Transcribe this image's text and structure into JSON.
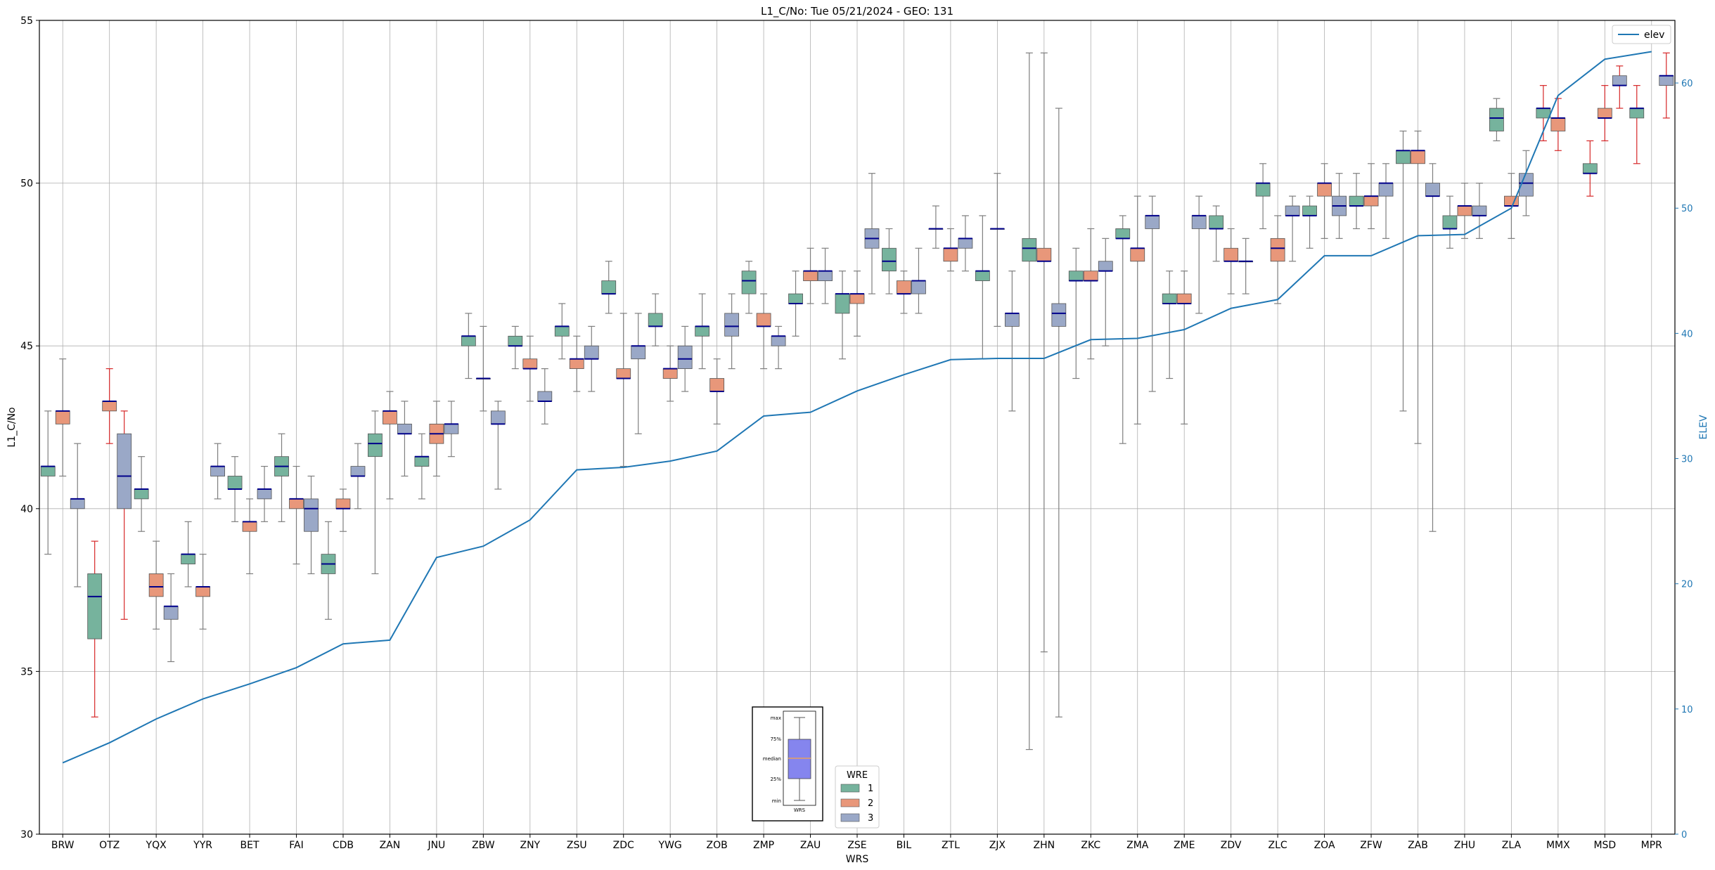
{
  "chart_data": {
    "type": "box",
    "title": "L1_C/No: Tue 05/21/2024 - GEO: 131",
    "xlabel": "WRS",
    "ylabel": "L1_C/No",
    "ylabel_right": "ELEV",
    "ylim": [
      30,
      55
    ],
    "ylim_right": [
      0,
      65
    ],
    "yticks": [
      30,
      35,
      40,
      45,
      50,
      55
    ],
    "yticks_right": [
      0,
      10,
      20,
      30,
      40,
      50,
      60
    ],
    "grid": true,
    "legend_line": {
      "label": "elev",
      "position": "top-right"
    },
    "legend_groups": {
      "title": "WRE",
      "position": "bottom-center",
      "items": [
        "1",
        "2",
        "3"
      ]
    },
    "inset_labels": [
      "max",
      "75%",
      "median",
      "25%",
      "min",
      "WRS"
    ],
    "colors": {
      "wre1": "#76b39d",
      "wre2": "#e8977a",
      "wre3": "#9aa8c7",
      "median": "#00008b",
      "elev": "#1f77b4",
      "whisker": "#7f7f7f",
      "whisker_alt": "#d62728",
      "inset_box": "#8585ee",
      "inset_median": "#e8a060"
    },
    "categories": [
      "BRW",
      "OTZ",
      "YQX",
      "YYR",
      "BET",
      "FAI",
      "CDB",
      "ZAN",
      "JNU",
      "ZBW",
      "ZNY",
      "ZSU",
      "ZDC",
      "YWG",
      "ZOB",
      "ZMP",
      "ZAU",
      "ZSE",
      "BIL",
      "ZTL",
      "ZJX",
      "ZHN",
      "ZKC",
      "ZMA",
      "ZME",
      "ZDV",
      "ZLC",
      "ZOA",
      "ZFW",
      "ZAB",
      "ZHU",
      "ZLA",
      "MMX",
      "MSD",
      "MPR"
    ],
    "elev": [
      5.7,
      7.3,
      9.2,
      10.8,
      12.0,
      13.3,
      15.2,
      15.5,
      22.1,
      23.0,
      25.1,
      29.1,
      29.3,
      29.8,
      30.6,
      33.4,
      33.7,
      35.4,
      36.7,
      37.9,
      38.0,
      38.0,
      39.5,
      39.6,
      40.3,
      42.0,
      42.7,
      46.2,
      46.2,
      47.8,
      47.9,
      50.0,
      59.0,
      61.9,
      62.5
    ],
    "boxes": [
      {
        "wrs": "BRW",
        "wre": 1,
        "min": 38.6,
        "q1": 41.0,
        "median": 41.3,
        "q3": 41.3,
        "max": 43.0
      },
      {
        "wrs": "BRW",
        "wre": 2,
        "min": 41.0,
        "q1": 42.6,
        "median": 43.0,
        "q3": 43.0,
        "max": 44.6
      },
      {
        "wrs": "BRW",
        "wre": 3,
        "min": 37.6,
        "q1": 40.0,
        "median": 40.3,
        "q3": 40.3,
        "max": 42.0
      },
      {
        "wrs": "OTZ",
        "wre": 1,
        "min": 33.6,
        "q1": 36.0,
        "median": 37.3,
        "q3": 38.0,
        "max": 39.0
      },
      {
        "wrs": "OTZ",
        "wre": 2,
        "min": 42.0,
        "q1": 43.0,
        "median": 43.3,
        "q3": 43.3,
        "max": 44.3
      },
      {
        "wrs": "OTZ",
        "wre": 3,
        "min": 36.6,
        "q1": 40.0,
        "median": 41.0,
        "q3": 42.3,
        "max": 43.0
      },
      {
        "wrs": "YQX",
        "wre": 1,
        "min": 39.3,
        "q1": 40.3,
        "median": 40.6,
        "q3": 40.6,
        "max": 41.6
      },
      {
        "wrs": "YQX",
        "wre": 2,
        "min": 36.3,
        "q1": 37.3,
        "median": 37.6,
        "q3": 38.0,
        "max": 39.0
      },
      {
        "wrs": "YQX",
        "wre": 3,
        "min": 35.3,
        "q1": 36.6,
        "median": 37.0,
        "q3": 37.0,
        "max": 38.0
      },
      {
        "wrs": "YYR",
        "wre": 1,
        "min": 37.6,
        "q1": 38.3,
        "median": 38.6,
        "q3": 38.6,
        "max": 39.6
      },
      {
        "wrs": "YYR",
        "wre": 2,
        "min": 36.3,
        "q1": 37.3,
        "median": 37.6,
        "q3": 37.6,
        "max": 38.6
      },
      {
        "wrs": "YYR",
        "wre": 3,
        "min": 40.3,
        "q1": 41.0,
        "median": 41.3,
        "q3": 41.3,
        "max": 42.0
      },
      {
        "wrs": "BET",
        "wre": 1,
        "min": 39.6,
        "q1": 40.6,
        "median": 40.6,
        "q3": 41.0,
        "max": 41.6
      },
      {
        "wrs": "BET",
        "wre": 2,
        "min": 38.0,
        "q1": 39.3,
        "median": 39.6,
        "q3": 39.6,
        "max": 40.3
      },
      {
        "wrs": "BET",
        "wre": 3,
        "min": 39.6,
        "q1": 40.3,
        "median": 40.6,
        "q3": 40.6,
        "max": 41.3
      },
      {
        "wrs": "FAI",
        "wre": 1,
        "min": 39.6,
        "q1": 41.0,
        "median": 41.3,
        "q3": 41.6,
        "max": 42.3
      },
      {
        "wrs": "FAI",
        "wre": 2,
        "min": 38.3,
        "q1": 40.0,
        "median": 40.3,
        "q3": 40.3,
        "max": 41.3
      },
      {
        "wrs": "FAI",
        "wre": 3,
        "min": 38.0,
        "q1": 39.3,
        "median": 40.0,
        "q3": 40.3,
        "max": 41.0
      },
      {
        "wrs": "CDB",
        "wre": 1,
        "min": 36.6,
        "q1": 38.0,
        "median": 38.3,
        "q3": 38.6,
        "max": 39.6
      },
      {
        "wrs": "CDB",
        "wre": 2,
        "min": 39.3,
        "q1": 40.0,
        "median": 40.0,
        "q3": 40.3,
        "max": 40.6
      },
      {
        "wrs": "CDB",
        "wre": 3,
        "min": 40.0,
        "q1": 41.0,
        "median": 41.0,
        "q3": 41.3,
        "max": 42.0
      },
      {
        "wrs": "ZAN",
        "wre": 1,
        "min": 38.0,
        "q1": 41.6,
        "median": 42.0,
        "q3": 42.3,
        "max": 43.0
      },
      {
        "wrs": "ZAN",
        "wre": 2,
        "min": 40.3,
        "q1": 42.6,
        "median": 43.0,
        "q3": 43.0,
        "max": 43.6
      },
      {
        "wrs": "ZAN",
        "wre": 3,
        "min": 41.0,
        "q1": 42.3,
        "median": 42.3,
        "q3": 42.6,
        "max": 43.3
      },
      {
        "wrs": "JNU",
        "wre": 1,
        "min": 40.3,
        "q1": 41.3,
        "median": 41.6,
        "q3": 41.6,
        "max": 42.3
      },
      {
        "wrs": "JNU",
        "wre": 2,
        "min": 41.0,
        "q1": 42.0,
        "median": 42.3,
        "q3": 42.6,
        "max": 43.3
      },
      {
        "wrs": "JNU",
        "wre": 3,
        "min": 41.6,
        "q1": 42.3,
        "median": 42.6,
        "q3": 42.6,
        "max": 43.3
      },
      {
        "wrs": "ZBW",
        "wre": 1,
        "min": 44.0,
        "q1": 45.0,
        "median": 45.3,
        "q3": 45.3,
        "max": 46.0
      },
      {
        "wrs": "ZBW",
        "wre": 2,
        "min": 43.0,
        "q1": 44.0,
        "median": 44.0,
        "q3": 44.0,
        "max": 45.6
      },
      {
        "wrs": "ZBW",
        "wre": 3,
        "min": 40.6,
        "q1": 42.6,
        "median": 42.6,
        "q3": 43.0,
        "max": 43.3
      },
      {
        "wrs": "ZNY",
        "wre": 1,
        "min": 44.3,
        "q1": 45.0,
        "median": 45.0,
        "q3": 45.3,
        "max": 45.6
      },
      {
        "wrs": "ZNY",
        "wre": 2,
        "min": 43.3,
        "q1": 44.3,
        "median": 44.3,
        "q3": 44.6,
        "max": 45.3
      },
      {
        "wrs": "ZNY",
        "wre": 3,
        "min": 42.6,
        "q1": 43.3,
        "median": 43.3,
        "q3": 43.6,
        "max": 44.3
      },
      {
        "wrs": "ZSU",
        "wre": 1,
        "min": 44.6,
        "q1": 45.3,
        "median": 45.6,
        "q3": 45.6,
        "max": 46.3
      },
      {
        "wrs": "ZSU",
        "wre": 2,
        "min": 43.6,
        "q1": 44.3,
        "median": 44.6,
        "q3": 44.6,
        "max": 45.3
      },
      {
        "wrs": "ZSU",
        "wre": 3,
        "min": 43.6,
        "q1": 44.6,
        "median": 44.6,
        "q3": 45.0,
        "max": 45.6
      },
      {
        "wrs": "ZDC",
        "wre": 1,
        "min": 46.0,
        "q1": 46.6,
        "median": 46.6,
        "q3": 47.0,
        "max": 47.6
      },
      {
        "wrs": "ZDC",
        "wre": 2,
        "min": 41.3,
        "q1": 44.0,
        "median": 44.0,
        "q3": 44.3,
        "max": 46.0
      },
      {
        "wrs": "ZDC",
        "wre": 3,
        "min": 42.3,
        "q1": 44.6,
        "median": 45.0,
        "q3": 45.0,
        "max": 46.0
      },
      {
        "wrs": "YWG",
        "wre": 1,
        "min": 45.0,
        "q1": 45.6,
        "median": 45.6,
        "q3": 46.0,
        "max": 46.6
      },
      {
        "wrs": "YWG",
        "wre": 2,
        "min": 43.3,
        "q1": 44.0,
        "median": 44.3,
        "q3": 44.3,
        "max": 45.0
      },
      {
        "wrs": "YWG",
        "wre": 3,
        "min": 43.6,
        "q1": 44.3,
        "median": 44.6,
        "q3": 45.0,
        "max": 45.6
      },
      {
        "wrs": "ZOB",
        "wre": 1,
        "min": 44.3,
        "q1": 45.3,
        "median": 45.6,
        "q3": 45.6,
        "max": 46.6
      },
      {
        "wrs": "ZOB",
        "wre": 2,
        "min": 42.6,
        "q1": 43.6,
        "median": 43.6,
        "q3": 44.0,
        "max": 44.6
      },
      {
        "wrs": "ZOB",
        "wre": 3,
        "min": 44.3,
        "q1": 45.3,
        "median": 45.6,
        "q3": 46.0,
        "max": 46.6
      },
      {
        "wrs": "ZMP",
        "wre": 1,
        "min": 46.0,
        "q1": 46.6,
        "median": 47.0,
        "q3": 47.3,
        "max": 47.6
      },
      {
        "wrs": "ZMP",
        "wre": 2,
        "min": 44.3,
        "q1": 45.6,
        "median": 45.6,
        "q3": 46.0,
        "max": 46.6
      },
      {
        "wrs": "ZMP",
        "wre": 3,
        "min": 44.3,
        "q1": 45.0,
        "median": 45.3,
        "q3": 45.3,
        "max": 45.6
      },
      {
        "wrs": "ZAU",
        "wre": 1,
        "min": 45.3,
        "q1": 46.3,
        "median": 46.3,
        "q3": 46.6,
        "max": 47.3
      },
      {
        "wrs": "ZAU",
        "wre": 2,
        "min": 46.3,
        "q1": 47.0,
        "median": 47.3,
        "q3": 47.3,
        "max": 48.0
      },
      {
        "wrs": "ZAU",
        "wre": 3,
        "min": 46.3,
        "q1": 47.0,
        "median": 47.3,
        "q3": 47.3,
        "max": 48.0
      },
      {
        "wrs": "ZSE",
        "wre": 1,
        "min": 44.6,
        "q1": 46.0,
        "median": 46.6,
        "q3": 46.6,
        "max": 47.3
      },
      {
        "wrs": "ZSE",
        "wre": 2,
        "min": 45.3,
        "q1": 46.3,
        "median": 46.6,
        "q3": 46.6,
        "max": 47.3
      },
      {
        "wrs": "ZSE",
        "wre": 3,
        "min": 46.6,
        "q1": 48.0,
        "median": 48.3,
        "q3": 48.6,
        "max": 50.3
      },
      {
        "wrs": "BIL",
        "wre": 1,
        "min": 46.6,
        "q1": 47.3,
        "median": 47.6,
        "q3": 48.0,
        "max": 48.6
      },
      {
        "wrs": "BIL",
        "wre": 2,
        "min": 46.0,
        "q1": 46.6,
        "median": 46.6,
        "q3": 47.0,
        "max": 47.3
      },
      {
        "wrs": "BIL",
        "wre": 3,
        "min": 46.0,
        "q1": 46.6,
        "median": 47.0,
        "q3": 47.0,
        "max": 48.0
      },
      {
        "wrs": "ZTL",
        "wre": 1,
        "min": 48.0,
        "q1": 48.6,
        "median": 48.6,
        "q3": 48.6,
        "max": 49.3
      },
      {
        "wrs": "ZTL",
        "wre": 2,
        "min": 47.3,
        "q1": 47.6,
        "median": 48.0,
        "q3": 48.0,
        "max": 48.6
      },
      {
        "wrs": "ZTL",
        "wre": 3,
        "min": 47.3,
        "q1": 48.0,
        "median": 48.3,
        "q3": 48.3,
        "max": 49.0
      },
      {
        "wrs": "ZJX",
        "wre": 1,
        "min": 44.6,
        "q1": 47.0,
        "median": 47.3,
        "q3": 47.3,
        "max": 49.0
      },
      {
        "wrs": "ZJX",
        "wre": 2,
        "min": 45.6,
        "q1": 48.6,
        "median": 48.6,
        "q3": 48.6,
        "max": 50.3
      },
      {
        "wrs": "ZJX",
        "wre": 3,
        "min": 43.0,
        "q1": 45.6,
        "median": 46.0,
        "q3": 46.0,
        "max": 47.3
      },
      {
        "wrs": "ZHN",
        "wre": 1,
        "min": 32.6,
        "q1": 47.6,
        "median": 48.0,
        "q3": 48.3,
        "max": 54.0
      },
      {
        "wrs": "ZHN",
        "wre": 2,
        "min": 35.6,
        "q1": 47.6,
        "median": 47.6,
        "q3": 48.0,
        "max": 54.0
      },
      {
        "wrs": "ZHN",
        "wre": 3,
        "min": 33.6,
        "q1": 45.6,
        "median": 46.0,
        "q3": 46.3,
        "max": 52.3
      },
      {
        "wrs": "ZKC",
        "wre": 1,
        "min": 44.0,
        "q1": 47.0,
        "median": 47.0,
        "q3": 47.3,
        "max": 48.0
      },
      {
        "wrs": "ZKC",
        "wre": 2,
        "min": 44.6,
        "q1": 47.0,
        "median": 47.0,
        "q3": 47.3,
        "max": 48.6
      },
      {
        "wrs": "ZKC",
        "wre": 3,
        "min": 45.0,
        "q1": 47.3,
        "median": 47.3,
        "q3": 47.6,
        "max": 48.3
      },
      {
        "wrs": "ZMA",
        "wre": 1,
        "min": 42.0,
        "q1": 48.3,
        "median": 48.3,
        "q3": 48.6,
        "max": 49.0
      },
      {
        "wrs": "ZMA",
        "wre": 2,
        "min": 42.6,
        "q1": 47.6,
        "median": 48.0,
        "q3": 48.0,
        "max": 49.6
      },
      {
        "wrs": "ZMA",
        "wre": 3,
        "min": 43.6,
        "q1": 48.6,
        "median": 49.0,
        "q3": 49.0,
        "max": 49.6
      },
      {
        "wrs": "ZME",
        "wre": 1,
        "min": 44.0,
        "q1": 46.3,
        "median": 46.3,
        "q3": 46.6,
        "max": 47.3
      },
      {
        "wrs": "ZME",
        "wre": 2,
        "min": 42.6,
        "q1": 46.3,
        "median": 46.3,
        "q3": 46.6,
        "max": 47.3
      },
      {
        "wrs": "ZME",
        "wre": 3,
        "min": 46.0,
        "q1": 48.6,
        "median": 49.0,
        "q3": 49.0,
        "max": 49.6
      },
      {
        "wrs": "ZDV",
        "wre": 1,
        "min": 47.6,
        "q1": 48.6,
        "median": 48.6,
        "q3": 49.0,
        "max": 49.3
      },
      {
        "wrs": "ZDV",
        "wre": 2,
        "min": 46.6,
        "q1": 47.6,
        "median": 47.6,
        "q3": 48.0,
        "max": 48.6
      },
      {
        "wrs": "ZDV",
        "wre": 3,
        "min": 46.6,
        "q1": 47.6,
        "median": 47.6,
        "q3": 47.6,
        "max": 48.3
      },
      {
        "wrs": "ZLC",
        "wre": 1,
        "min": 48.6,
        "q1": 49.6,
        "median": 50.0,
        "q3": 50.0,
        "max": 50.6
      },
      {
        "wrs": "ZLC",
        "wre": 2,
        "min": 46.3,
        "q1": 47.6,
        "median": 48.0,
        "q3": 48.3,
        "max": 49.0
      },
      {
        "wrs": "ZLC",
        "wre": 3,
        "min": 47.6,
        "q1": 49.0,
        "median": 49.0,
        "q3": 49.3,
        "max": 49.6
      },
      {
        "wrs": "ZOA",
        "wre": 1,
        "min": 48.0,
        "q1": 49.0,
        "median": 49.0,
        "q3": 49.3,
        "max": 49.6
      },
      {
        "wrs": "ZOA",
        "wre": 2,
        "min": 48.3,
        "q1": 49.6,
        "median": 50.0,
        "q3": 50.0,
        "max": 50.6
      },
      {
        "wrs": "ZOA",
        "wre": 3,
        "min": 48.3,
        "q1": 49.0,
        "median": 49.3,
        "q3": 49.6,
        "max": 50.3
      },
      {
        "wrs": "ZFW",
        "wre": 1,
        "min": 48.6,
        "q1": 49.3,
        "median": 49.3,
        "q3": 49.6,
        "max": 50.3
      },
      {
        "wrs": "ZFW",
        "wre": 2,
        "min": 48.6,
        "q1": 49.3,
        "median": 49.6,
        "q3": 49.6,
        "max": 50.6
      },
      {
        "wrs": "ZFW",
        "wre": 3,
        "min": 48.3,
        "q1": 49.6,
        "median": 50.0,
        "q3": 50.0,
        "max": 50.6
      },
      {
        "wrs": "ZAB",
        "wre": 1,
        "min": 43.0,
        "q1": 50.6,
        "median": 51.0,
        "q3": 51.0,
        "max": 51.6
      },
      {
        "wrs": "ZAB",
        "wre": 2,
        "min": 42.0,
        "q1": 50.6,
        "median": 51.0,
        "q3": 51.0,
        "max": 51.6
      },
      {
        "wrs": "ZAB",
        "wre": 3,
        "min": 39.3,
        "q1": 49.6,
        "median": 49.6,
        "q3": 50.0,
        "max": 50.6
      },
      {
        "wrs": "ZHU",
        "wre": 1,
        "min": 48.0,
        "q1": 48.6,
        "median": 48.6,
        "q3": 49.0,
        "max": 49.6
      },
      {
        "wrs": "ZHU",
        "wre": 2,
        "min": 48.3,
        "q1": 49.0,
        "median": 49.3,
        "q3": 49.3,
        "max": 50.0
      },
      {
        "wrs": "ZHU",
        "wre": 3,
        "min": 48.3,
        "q1": 49.0,
        "median": 49.0,
        "q3": 49.3,
        "max": 50.0
      },
      {
        "wrs": "ZLA",
        "wre": 1,
        "min": 51.3,
        "q1": 51.6,
        "median": 52.0,
        "q3": 52.3,
        "max": 52.6
      },
      {
        "wrs": "ZLA",
        "wre": 2,
        "min": 48.3,
        "q1": 49.3,
        "median": 49.3,
        "q3": 49.6,
        "max": 50.3
      },
      {
        "wrs": "ZLA",
        "wre": 3,
        "min": 49.0,
        "q1": 49.6,
        "median": 50.0,
        "q3": 50.3,
        "max": 51.0
      },
      {
        "wrs": "MMX",
        "wre": 1,
        "min": 51.3,
        "q1": 52.0,
        "median": 52.3,
        "q3": 52.3,
        "max": 53.0
      },
      {
        "wrs": "MMX",
        "wre": 2,
        "min": 51.0,
        "q1": 51.6,
        "median": 52.0,
        "q3": 52.0,
        "max": 52.6
      },
      {
        "wrs": "MSD",
        "wre": 1,
        "min": 49.6,
        "q1": 50.3,
        "median": 50.3,
        "q3": 50.6,
        "max": 51.3
      },
      {
        "wrs": "MSD",
        "wre": 2,
        "min": 51.3,
        "q1": 52.0,
        "median": 52.0,
        "q3": 52.3,
        "max": 53.0
      },
      {
        "wrs": "MSD",
        "wre": 3,
        "min": 52.3,
        "q1": 53.0,
        "median": 53.0,
        "q3": 53.3,
        "max": 53.6
      },
      {
        "wrs": "MPR",
        "wre": 1,
        "min": 50.6,
        "q1": 52.0,
        "median": 52.3,
        "q3": 52.3,
        "max": 53.0
      },
      {
        "wrs": "MPR",
        "wre": 3,
        "min": 52.0,
        "q1": 53.0,
        "median": 53.3,
        "q3": 53.3,
        "max": 54.0
      }
    ]
  }
}
